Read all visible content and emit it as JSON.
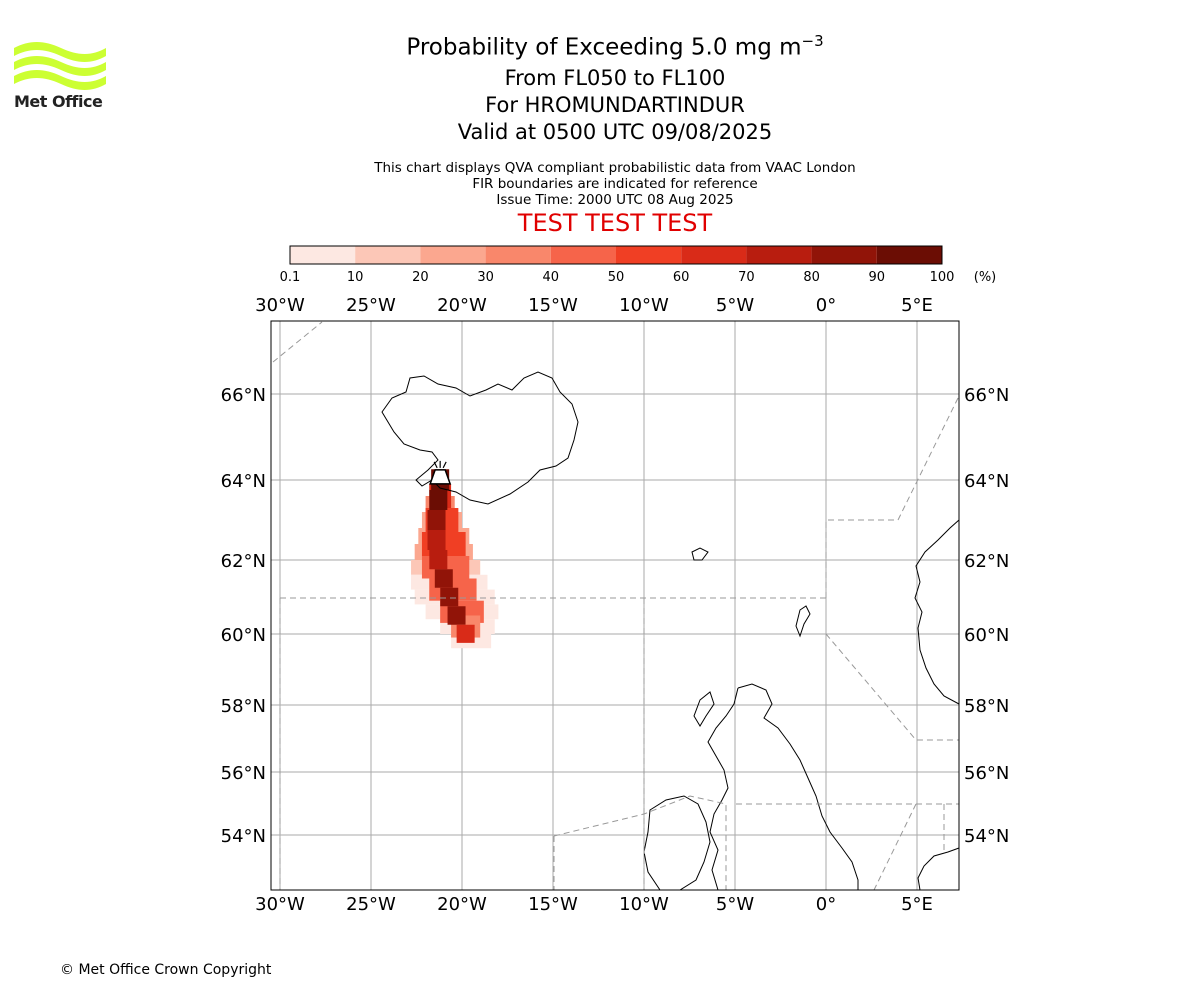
{
  "logo": {
    "name": "Met Office",
    "color": "#ccff33"
  },
  "title": {
    "main": "Probability of Exceeding 5.0 mg m",
    "main_exp": "−3",
    "flight_levels": "From FL050 to FL100",
    "volcano": "For HROMUNDARTINDUR",
    "valid": "Valid at 0500 UTC 09/08/2025"
  },
  "notes": {
    "line1": "This chart displays QVA compliant probabilistic data from VAAC London",
    "line2": "FIR boundaries are indicated for reference",
    "line3": "Issue Time: 2000 UTC 08 Aug 2025"
  },
  "test_banner": "TEST TEST TEST",
  "colorbar": {
    "ticks": [
      "0.1",
      "10",
      "20",
      "30",
      "40",
      "50",
      "60",
      "70",
      "80",
      "90",
      "100"
    ],
    "unit": "(%)",
    "colors": [
      "#fde8e2",
      "#fcc7b7",
      "#fba78f",
      "#f9876b",
      "#f6644a",
      "#f03f24",
      "#d92b18",
      "#b81d0f",
      "#911408",
      "#6b0d04"
    ]
  },
  "map": {
    "lon_ticks": [
      "30°W",
      "25°W",
      "20°W",
      "15°W",
      "10°W",
      "5°W",
      "0°",
      "5°E"
    ],
    "lat_ticks": [
      "66°N",
      "64°N",
      "62°N",
      "60°N",
      "58°N",
      "56°N",
      "54°N"
    ],
    "grid_color": "#aaaaaa",
    "volcano_icon": "volcano-icon",
    "plume": [
      {
        "lat": 64.0,
        "lon": -21.2,
        "band": 9
      },
      {
        "lat": 63.5,
        "lon": -21.3,
        "band": 9
      },
      {
        "lat": 63.0,
        "lon": -21.4,
        "band": 8
      },
      {
        "lat": 62.5,
        "lon": -21.4,
        "band": 7
      },
      {
        "lat": 62.0,
        "lon": -21.3,
        "band": 7
      },
      {
        "lat": 61.5,
        "lon": -21.0,
        "band": 8
      },
      {
        "lat": 61.0,
        "lon": -20.7,
        "band": 8
      },
      {
        "lat": 60.5,
        "lon": -20.3,
        "band": 8
      },
      {
        "lat": 60.0,
        "lon": -19.8,
        "band": 6
      }
    ]
  },
  "copyright": "© Met Office Crown Copyright"
}
